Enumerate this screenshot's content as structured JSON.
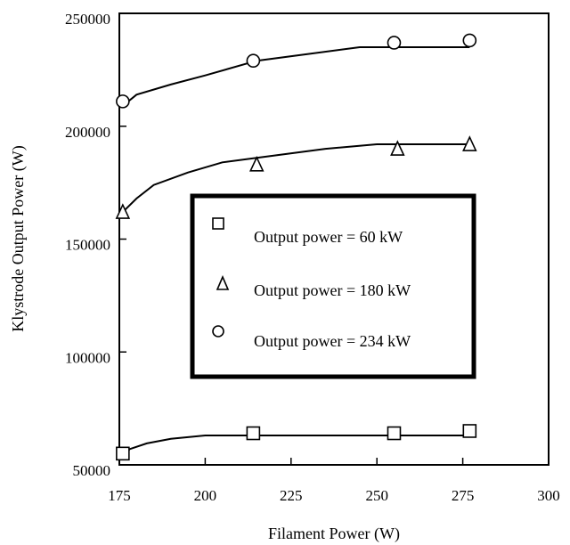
{
  "chart_data": {
    "type": "scatter",
    "xlabel": "Filament Power (W)",
    "ylabel": "Klystrode Output Power (W)",
    "xlim": [
      175,
      300
    ],
    "ylim": [
      50000,
      250000
    ],
    "xticks": [
      "175",
      "200",
      "225",
      "250",
      "275",
      "300"
    ],
    "yticks": [
      "50000",
      "100000",
      "150000",
      "200000",
      "250000"
    ],
    "legend_position": "center",
    "series": [
      {
        "name": "Output power = 60 kW",
        "marker": "square",
        "points": [
          [
            176,
            55000
          ],
          [
            214,
            64000
          ],
          [
            255,
            64000
          ],
          [
            277,
            65000
          ]
        ],
        "fit": [
          [
            176,
            53000
          ],
          [
            178,
            57000
          ],
          [
            183,
            59500
          ],
          [
            190,
            61500
          ],
          [
            200,
            63000
          ],
          [
            215,
            63000
          ],
          [
            250,
            63000
          ],
          [
            277,
            63000
          ]
        ]
      },
      {
        "name": "Output power = 180 kW",
        "marker": "triangle",
        "points": [
          [
            176,
            162000
          ],
          [
            215,
            183000
          ],
          [
            256,
            190000
          ],
          [
            277,
            192000
          ]
        ],
        "fit": [
          [
            176,
            162000
          ],
          [
            180,
            168000
          ],
          [
            185,
            174000
          ],
          [
            195,
            179500
          ],
          [
            205,
            184000
          ],
          [
            215,
            186000
          ],
          [
            235,
            190000
          ],
          [
            250,
            192000
          ],
          [
            277,
            192000
          ]
        ]
      },
      {
        "name": "Output power = 234 kW",
        "marker": "circle",
        "points": [
          [
            176,
            211000
          ],
          [
            214,
            229000
          ],
          [
            255,
            237000
          ],
          [
            277,
            238000
          ]
        ],
        "fit": [
          [
            176,
            209000
          ],
          [
            180,
            214000
          ],
          [
            190,
            218500
          ],
          [
            200,
            222500
          ],
          [
            215,
            229000
          ],
          [
            230,
            232000
          ],
          [
            245,
            235000
          ],
          [
            277,
            235000
          ]
        ]
      }
    ]
  }
}
